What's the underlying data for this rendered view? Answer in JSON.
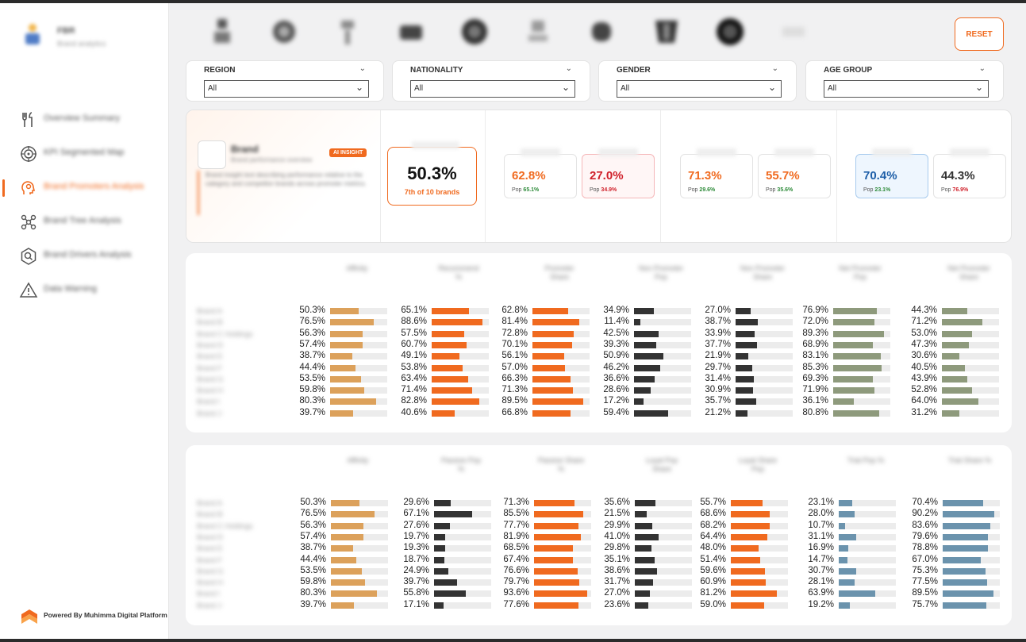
{
  "sidebar": {
    "brand": {
      "title": "FBR",
      "subtitle": "Brand analytics"
    },
    "items": [
      {
        "label": "Overview Summary",
        "icon": "fork-knife-icon",
        "active": false
      },
      {
        "label": "KPI Segmented Map",
        "icon": "target-icon",
        "active": false
      },
      {
        "label": "Brand Promoters Analysis",
        "icon": "head-brain-icon",
        "active": true
      },
      {
        "label": "Brand Tree Analysis",
        "icon": "network-icon",
        "active": false
      },
      {
        "label": "Brand Drivers Analysis",
        "icon": "hexagon-search-icon",
        "active": false
      },
      {
        "label": "Data Warning",
        "icon": "warning-icon",
        "active": false
      }
    ],
    "powered_by": "Powered By Muhimma Digital Platform"
  },
  "reset_label": "RESET",
  "filters": [
    {
      "label": "REGION",
      "value": "All"
    },
    {
      "label": "NATIONALITY",
      "value": "All"
    },
    {
      "label": "GENDER",
      "value": "All"
    },
    {
      "label": "AGE GROUP",
      "value": "All"
    }
  ],
  "insight": {
    "brand_name": "Brand",
    "brand_sub": "Brand performance overview",
    "badge": "AI INSIGHT",
    "text": "Brand insight text describing performance relative to the category and competitor brands across promoter metrics."
  },
  "main_kpi": {
    "value": "50.3%",
    "rank": "7th of 10 brands"
  },
  "kpi_cards": [
    {
      "value": "62.8%",
      "pop_label": "Pop",
      "pop": "65.1%",
      "value_color": "#f06a1f",
      "pop_color": "#2e8b3a",
      "style": "plain"
    },
    {
      "value": "27.0%",
      "pop_label": "Pop",
      "pop": "34.9%",
      "value_color": "#d0202a",
      "pop_color": "#d0202a",
      "style": "red"
    },
    {
      "value": "71.3%",
      "pop_label": "Pop",
      "pop": "29.6%",
      "value_color": "#f06a1f",
      "pop_color": "#2e8b3a",
      "style": "plain"
    },
    {
      "value": "55.7%",
      "pop_label": "Pop",
      "pop": "35.6%",
      "value_color": "#f06a1f",
      "pop_color": "#2e8b3a",
      "style": "plain"
    },
    {
      "value": "70.4%",
      "pop_label": "Pop",
      "pop": "23.1%",
      "value_color": "#1e5fa8",
      "pop_color": "#2e8b3a",
      "style": "blue"
    },
    {
      "value": "44.3%",
      "pop_label": "Pop",
      "pop": "76.9%",
      "value_color": "#333333",
      "pop_color": "#d0202a",
      "style": "plain"
    }
  ],
  "colors": {
    "accent": "#f06a1f",
    "tan": "#dca15b",
    "dark": "#333333",
    "olive": "#8e9a7c",
    "steel": "#6b93ad"
  },
  "row_labels": [
    "Brand A",
    "Brand B",
    "Brand C Holdings",
    "Brand D",
    "Brand E",
    "Brand F",
    "Brand G",
    "Brand H",
    "Brand I",
    "Brand J"
  ],
  "table1": {
    "columns": [
      {
        "header": "Affinity",
        "color": "tan",
        "values": [
          "50.3%",
          "76.5%",
          "56.3%",
          "57.4%",
          "38.7%",
          "44.4%",
          "53.5%",
          "59.8%",
          "80.3%",
          "39.7%"
        ]
      },
      {
        "header": "Recommend %",
        "color": "accent",
        "values": [
          "65.1%",
          "88.6%",
          "57.5%",
          "60.7%",
          "49.1%",
          "53.8%",
          "63.4%",
          "71.4%",
          "82.8%",
          "40.6%"
        ]
      },
      {
        "header": "Promoter Share",
        "color": "accent",
        "values": [
          "62.8%",
          "81.4%",
          "72.8%",
          "70.1%",
          "56.1%",
          "57.0%",
          "66.3%",
          "71.3%",
          "89.5%",
          "66.8%"
        ]
      },
      {
        "header": "Non Promoter Pop",
        "color": "dark",
        "values": [
          "34.9%",
          "11.4%",
          "42.5%",
          "39.3%",
          "50.9%",
          "46.2%",
          "36.6%",
          "28.6%",
          "17.2%",
          "59.4%"
        ]
      },
      {
        "header": "Non Promoter Share",
        "color": "dark",
        "values": [
          "27.0%",
          "38.7%",
          "33.9%",
          "37.7%",
          "21.9%",
          "29.7%",
          "31.4%",
          "30.9%",
          "35.7%",
          "21.2%"
        ]
      },
      {
        "header": "Net Promoter Pop",
        "color": "olive",
        "values": [
          "76.9%",
          "72.0%",
          "89.3%",
          "68.9%",
          "83.1%",
          "85.3%",
          "69.3%",
          "71.9%",
          "36.1%",
          "80.8%"
        ]
      },
      {
        "header": "Net Promoter Share",
        "color": "olive",
        "values": [
          "44.3%",
          "71.2%",
          "53.0%",
          "47.3%",
          "30.6%",
          "40.5%",
          "43.9%",
          "52.8%",
          "64.0%",
          "31.2%"
        ]
      }
    ]
  },
  "table2": {
    "columns": [
      {
        "header": "Affinity",
        "color": "tan",
        "values": [
          "50.3%",
          "76.5%",
          "56.3%",
          "57.4%",
          "38.7%",
          "44.4%",
          "53.5%",
          "59.8%",
          "80.3%",
          "39.7%"
        ]
      },
      {
        "header": "Passive Pop %",
        "color": "dark",
        "values": [
          "29.6%",
          "67.1%",
          "27.6%",
          "19.7%",
          "19.3%",
          "18.7%",
          "24.9%",
          "39.7%",
          "55.8%",
          "17.1%"
        ]
      },
      {
        "header": "Passive Share %",
        "color": "accent",
        "values": [
          "71.3%",
          "85.5%",
          "77.7%",
          "81.9%",
          "68.5%",
          "67.4%",
          "76.6%",
          "79.7%",
          "93.6%",
          "77.6%"
        ]
      },
      {
        "header": "Loyal Pop Share",
        "color": "dark",
        "values": [
          "35.6%",
          "21.5%",
          "29.9%",
          "41.0%",
          "29.8%",
          "35.1%",
          "38.6%",
          "31.7%",
          "27.0%",
          "23.6%"
        ]
      },
      {
        "header": "Loyal Share Pop",
        "color": "accent",
        "values": [
          "55.7%",
          "68.6%",
          "68.2%",
          "64.4%",
          "48.0%",
          "51.4%",
          "59.6%",
          "60.9%",
          "81.2%",
          "59.0%"
        ]
      },
      {
        "header": "Trial Pop %",
        "color": "steel",
        "values": [
          "23.1%",
          "28.0%",
          "10.7%",
          "31.1%",
          "16.9%",
          "14.7%",
          "30.7%",
          "28.1%",
          "63.9%",
          "19.2%"
        ]
      },
      {
        "header": "Trial Share %",
        "color": "steel",
        "values": [
          "70.4%",
          "90.2%",
          "83.6%",
          "79.6%",
          "78.8%",
          "67.0%",
          "75.3%",
          "77.5%",
          "89.5%",
          "75.7%"
        ]
      }
    ]
  }
}
